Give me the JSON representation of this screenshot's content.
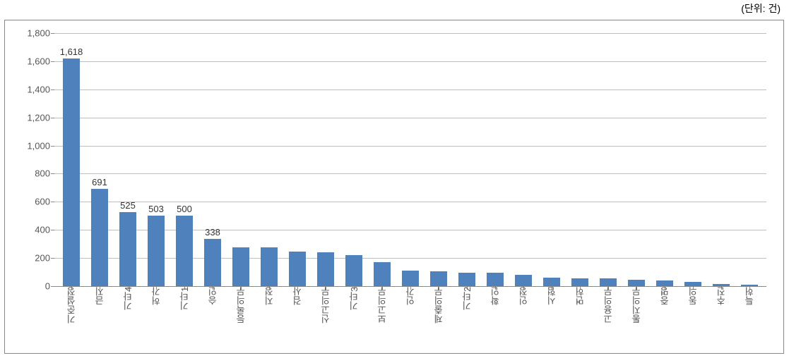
{
  "unit_label": "(단위: 건)",
  "chart": {
    "type": "bar",
    "ylim": [
      0,
      1800
    ],
    "ytick_step": 200,
    "yticks": [
      0,
      200,
      400,
      600,
      800,
      1000,
      1200,
      1400,
      1600,
      1800
    ],
    "ytick_labels": [
      "0",
      "200",
      "400",
      "600",
      "800",
      "1,000",
      "1,200",
      "1,400",
      "1,600",
      "1,800"
    ],
    "bar_color": "#4f81bd",
    "grid_color": "#bfbfbf",
    "axis_color": "#888888",
    "background_color": "#ffffff",
    "label_fontsize": 13,
    "value_label_count": 6,
    "categories": [
      "기준설정",
      "금지",
      "기타4",
      "허가",
      "기타1",
      "승인",
      "등록의무",
      "지정",
      "검사",
      "신고의무",
      "기타3",
      "보고의무",
      "인가",
      "제출의무",
      "기타2",
      "확인",
      "인정",
      "시험",
      "면허",
      "고용의무",
      "통지의무",
      "증명",
      "동의",
      "추진",
      "특허"
    ],
    "values": [
      1618,
      691,
      525,
      503,
      500,
      338,
      275,
      275,
      245,
      240,
      220,
      170,
      110,
      105,
      95,
      95,
      80,
      60,
      55,
      55,
      45,
      40,
      30,
      15,
      10
    ],
    "value_labels": [
      "1,618",
      "691",
      "525",
      "503",
      "500",
      "338",
      "",
      "",
      "",
      "",
      "",
      "",
      "",
      "",
      "",
      "",
      "",
      "",
      "",
      "",
      "",
      "",
      "",
      "",
      ""
    ]
  }
}
